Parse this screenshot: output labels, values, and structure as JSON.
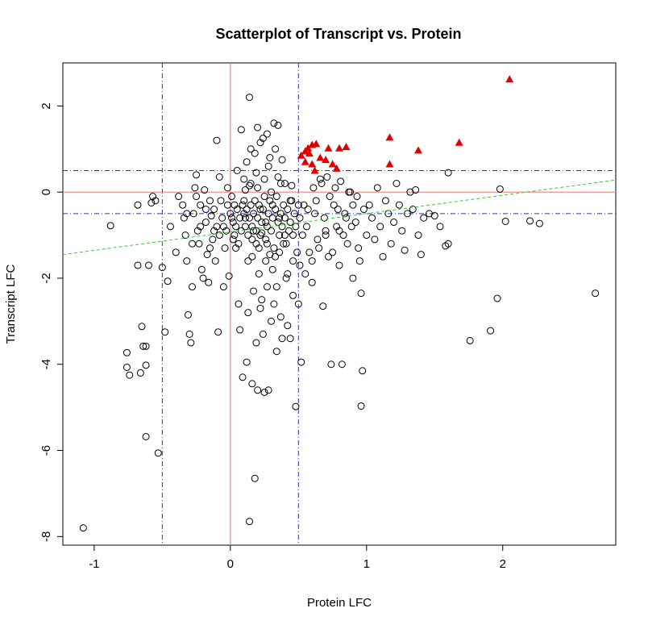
{
  "chart_data": {
    "type": "scatter",
    "title": "Scatterplot of Transcript vs. Protein",
    "xlabel": "Protein LFC",
    "ylabel": "Transcript LFC",
    "xlim": [
      -1.23,
      2.83
    ],
    "ylim": [
      -8.2,
      3.0
    ],
    "x_ticks": [
      -1,
      0,
      1,
      2
    ],
    "y_ticks": [
      2,
      0,
      -2,
      -4,
      -6,
      -8
    ],
    "grid": false,
    "colors": {
      "points": "#000000",
      "highlight": "#e00000",
      "zero_lines": "#f08080",
      "threshold_lines": "#3030c0",
      "trend_line": "#33cc33",
      "axis": "#000000"
    },
    "zero_lines": {
      "x": 0,
      "y": 0
    },
    "threshold_lines": {
      "x": [
        -0.5,
        0.5
      ],
      "y": [
        -0.5,
        0.5
      ]
    },
    "trend_line": {
      "x0": -1.23,
      "y0": -1.45,
      "x1": 2.83,
      "y1": 0.28
    },
    "highlighted": [
      [
        0.52,
        0.85
      ],
      [
        0.55,
        0.95
      ],
      [
        0.57,
        1.02
      ],
      [
        0.6,
        1.1
      ],
      [
        0.58,
        0.9
      ],
      [
        0.63,
        1.12
      ],
      [
        0.55,
        0.7
      ],
      [
        0.6,
        0.65
      ],
      [
        0.62,
        0.5
      ],
      [
        0.66,
        0.8
      ],
      [
        0.7,
        0.75
      ],
      [
        0.72,
        1.02
      ],
      [
        0.75,
        0.65
      ],
      [
        0.8,
        1.02
      ],
      [
        0.78,
        0.55
      ],
      [
        0.85,
        1.05
      ],
      [
        1.17,
        1.27
      ],
      [
        1.17,
        0.65
      ],
      [
        1.38,
        0.97
      ],
      [
        1.68,
        1.15
      ],
      [
        2.05,
        2.62
      ]
    ],
    "points": [
      [
        -1.08,
        -7.8
      ],
      [
        -0.88,
        -0.78
      ],
      [
        -0.76,
        -3.73
      ],
      [
        -0.76,
        -4.07
      ],
      [
        -0.74,
        -4.25
      ],
      [
        -0.68,
        -1.7
      ],
      [
        -0.68,
        -0.3
      ],
      [
        -0.66,
        -4.2
      ],
      [
        -0.65,
        -3.12
      ],
      [
        -0.64,
        -3.58
      ],
      [
        -0.62,
        -3.58
      ],
      [
        -0.62,
        -4.02
      ],
      [
        -0.62,
        -5.68
      ],
      [
        -0.6,
        -1.7
      ],
      [
        -0.58,
        -0.25
      ],
      [
        -0.57,
        -0.1
      ],
      [
        -0.55,
        -0.2
      ],
      [
        -0.53,
        -6.06
      ],
      [
        -0.5,
        -1.75
      ],
      [
        -0.48,
        -3.25
      ],
      [
        -0.46,
        -2.07
      ],
      [
        -0.44,
        -0.8
      ],
      [
        -0.4,
        -1.4
      ],
      [
        -0.38,
        -0.1
      ],
      [
        -0.35,
        -0.3
      ],
      [
        -0.34,
        -0.6
      ],
      [
        -0.33,
        -1.0
      ],
      [
        -0.32,
        -1.6
      ],
      [
        -0.31,
        -2.85
      ],
      [
        -0.3,
        -3.3
      ],
      [
        -0.29,
        -3.5
      ],
      [
        -0.28,
        -2.2
      ],
      [
        -0.27,
        -0.5
      ],
      [
        -0.26,
        0.1
      ],
      [
        -0.25,
        0.4
      ],
      [
        -0.24,
        -0.9
      ],
      [
        -0.23,
        -1.2
      ],
      [
        -0.22,
        -0.3
      ],
      [
        -0.21,
        -1.8
      ],
      [
        -0.2,
        -2.0
      ],
      [
        -0.19,
        0.05
      ],
      [
        -0.18,
        -0.7
      ],
      [
        -0.17,
        -1.45
      ],
      [
        -0.16,
        -2.1
      ],
      [
        -0.15,
        -0.2
      ],
      [
        -0.14,
        -0.55
      ],
      [
        -0.13,
        -1.1
      ],
      [
        -0.12,
        -0.4
      ],
      [
        -0.11,
        -1.6
      ],
      [
        -0.1,
        -0.8
      ],
      [
        -0.1,
        1.2
      ],
      [
        -0.09,
        -3.25
      ],
      [
        -0.08,
        0.35
      ],
      [
        -0.07,
        -0.2
      ],
      [
        -0.06,
        -0.6
      ],
      [
        -0.05,
        -2.2
      ],
      [
        -0.04,
        -1.3
      ],
      [
        -0.03,
        -0.9
      ],
      [
        -0.02,
        0.1
      ],
      [
        -0.01,
        -1.95
      ],
      [
        0.0,
        -0.5
      ],
      [
        0.01,
        -0.1
      ],
      [
        0.02,
        -0.7
      ],
      [
        0.03,
        -1.0
      ],
      [
        0.04,
        -1.3
      ],
      [
        0.05,
        0.5
      ],
      [
        0.06,
        -2.6
      ],
      [
        0.07,
        -3.2
      ],
      [
        0.08,
        1.45
      ],
      [
        0.09,
        -4.3
      ],
      [
        0.1,
        -0.2
      ],
      [
        0.11,
        -0.6
      ],
      [
        0.12,
        -3.95
      ],
      [
        0.13,
        -1.6
      ],
      [
        0.14,
        2.2
      ],
      [
        0.15,
        1.0
      ],
      [
        0.16,
        -4.45
      ],
      [
        0.17,
        -0.9
      ],
      [
        0.18,
        -6.65
      ],
      [
        0.19,
        0.45
      ],
      [
        0.2,
        -4.6
      ],
      [
        0.21,
        -1.9
      ],
      [
        0.22,
        -0.4
      ],
      [
        0.23,
        -2.5
      ],
      [
        0.24,
        1.25
      ],
      [
        0.25,
        -4.65
      ],
      [
        0.26,
        -0.7
      ],
      [
        0.27,
        -1.2
      ],
      [
        0.28,
        -4.6
      ],
      [
        0.29,
        0.8
      ],
      [
        0.3,
        -3.0
      ],
      [
        0.31,
        -0.3
      ],
      [
        0.32,
        1.6
      ],
      [
        0.33,
        -1.5
      ],
      [
        0.34,
        -2.2
      ],
      [
        0.35,
        1.55
      ],
      [
        0.36,
        -0.6
      ],
      [
        0.37,
        0.2
      ],
      [
        0.38,
        -3.4
      ],
      [
        0.4,
        -1.0
      ],
      [
        0.42,
        -1.9
      ],
      [
        0.44,
        -0.2
      ],
      [
        0.46,
        -2.4
      ],
      [
        0.48,
        -4.98
      ],
      [
        0.5,
        -2.6
      ],
      [
        0.52,
        -3.95
      ],
      [
        0.54,
        -0.3
      ],
      [
        0.56,
        -0.8
      ],
      [
        0.58,
        -1.4
      ],
      [
        0.6,
        -2.1
      ],
      [
        0.62,
        -0.5
      ],
      [
        0.64,
        -1.1
      ],
      [
        0.66,
        0.3
      ],
      [
        0.68,
        -2.65
      ],
      [
        0.7,
        -0.9
      ],
      [
        0.72,
        -1.5
      ],
      [
        0.74,
        -4.0
      ],
      [
        0.76,
        -0.3
      ],
      [
        0.78,
        -0.8
      ],
      [
        0.8,
        -1.7
      ],
      [
        0.82,
        -4.0
      ],
      [
        0.84,
        -0.5
      ],
      [
        0.86,
        -1.2
      ],
      [
        0.88,
        0.0
      ],
      [
        0.9,
        -2.0
      ],
      [
        0.92,
        -0.7
      ],
      [
        0.94,
        -1.3
      ],
      [
        0.96,
        -2.35
      ],
      [
        0.96,
        -4.97
      ],
      [
        0.97,
        -4.15
      ],
      [
        0.98,
        -0.4
      ],
      [
        1.0,
        -1.0
      ],
      [
        1.02,
        -0.3
      ],
      [
        1.04,
        -0.6
      ],
      [
        1.06,
        -1.1
      ],
      [
        1.08,
        0.1
      ],
      [
        1.1,
        -0.8
      ],
      [
        1.12,
        -1.5
      ],
      [
        1.14,
        -0.2
      ],
      [
        1.16,
        -0.5
      ],
      [
        1.18,
        -1.2
      ],
      [
        1.2,
        -0.7
      ],
      [
        1.22,
        0.2
      ],
      [
        1.24,
        -0.3
      ],
      [
        1.26,
        -0.9
      ],
      [
        1.28,
        -1.35
      ],
      [
        1.3,
        -0.5
      ],
      [
        1.32,
        0.0
      ],
      [
        1.34,
        -0.4
      ],
      [
        1.36,
        0.05
      ],
      [
        1.38,
        -1.0
      ],
      [
        1.4,
        -1.45
      ],
      [
        1.42,
        -0.6
      ],
      [
        1.46,
        -0.5
      ],
      [
        1.5,
        -0.55
      ],
      [
        1.54,
        -0.8
      ],
      [
        1.58,
        -1.25
      ],
      [
        1.6,
        -1.2
      ],
      [
        1.6,
        0.45
      ],
      [
        1.76,
        -3.45
      ],
      [
        1.91,
        -3.22
      ],
      [
        1.96,
        -2.47
      ],
      [
        1.98,
        0.07
      ],
      [
        2.02,
        -0.68
      ],
      [
        2.2,
        -0.67
      ],
      [
        2.27,
        -0.73
      ],
      [
        2.68,
        -2.35
      ],
      [
        0.12,
        -0.4
      ],
      [
        0.14,
        -0.6
      ],
      [
        0.15,
        -0.3
      ],
      [
        0.16,
        -0.8
      ],
      [
        0.17,
        -0.5
      ],
      [
        0.18,
        -0.2
      ],
      [
        0.19,
        -0.9
      ],
      [
        0.2,
        -0.6
      ],
      [
        0.21,
        -0.3
      ],
      [
        0.22,
        -1.0
      ],
      [
        0.23,
        -0.7
      ],
      [
        0.24,
        -0.4
      ],
      [
        0.25,
        -0.1
      ],
      [
        0.26,
        -1.1
      ],
      [
        0.27,
        -0.8
      ],
      [
        0.28,
        -0.5
      ],
      [
        0.29,
        -0.2
      ],
      [
        0.3,
        -0.9
      ],
      [
        0.31,
        -0.6
      ],
      [
        0.32,
        -1.3
      ],
      [
        0.33,
        -0.4
      ],
      [
        0.34,
        -0.1
      ],
      [
        0.35,
        -0.7
      ],
      [
        0.36,
        -1.0
      ],
      [
        0.37,
        -0.5
      ],
      [
        0.38,
        -0.8
      ],
      [
        0.39,
        -0.3
      ],
      [
        0.4,
        -0.6
      ],
      [
        0.41,
        -1.2
      ],
      [
        0.42,
        -0.4
      ],
      [
        0.43,
        -0.9
      ],
      [
        0.44,
        -0.7
      ],
      [
        0.45,
        -0.2
      ],
      [
        0.46,
        -1.0
      ],
      [
        0.47,
        -0.5
      ],
      [
        0.48,
        -0.8
      ],
      [
        0.49,
        -1.4
      ],
      [
        0.5,
        -0.3
      ],
      [
        0.51,
        -0.6
      ],
      [
        0.53,
        -1.0
      ],
      [
        0.1,
        -0.5
      ],
      [
        0.11,
        -0.8
      ],
      [
        0.13,
        -1.0
      ],
      [
        0.09,
        -0.3
      ],
      [
        0.08,
        -0.9
      ],
      [
        0.07,
        -0.6
      ],
      [
        0.06,
        -1.2
      ],
      [
        0.05,
        -0.4
      ],
      [
        0.04,
        -0.8
      ],
      [
        0.03,
        -0.3
      ],
      [
        0.02,
        -1.1
      ],
      [
        0.01,
        -0.6
      ],
      [
        0.15,
        0.2
      ],
      [
        0.2,
        0.1
      ],
      [
        0.25,
        0.3
      ],
      [
        0.3,
        0.0
      ],
      [
        0.35,
        0.35
      ],
      [
        0.4,
        0.2
      ],
      [
        0.45,
        0.15
      ],
      [
        0.1,
        0.3
      ],
      [
        0.12,
        0.7
      ],
      [
        0.18,
        0.9
      ],
      [
        0.22,
        1.15
      ],
      [
        0.28,
        0.6
      ],
      [
        0.33,
        1.0
      ],
      [
        0.38,
        0.75
      ],
      [
        0.27,
        1.35
      ],
      [
        0.2,
        1.5
      ],
      [
        0.16,
        -1.5
      ],
      [
        0.21,
        -1.3
      ],
      [
        0.26,
        -1.6
      ],
      [
        0.31,
        -1.8
      ],
      [
        0.36,
        -1.4
      ],
      [
        0.41,
        -2.0
      ],
      [
        0.46,
        -1.6
      ],
      [
        0.17,
        -2.3
      ],
      [
        0.22,
        -2.7
      ],
      [
        0.27,
        -2.2
      ],
      [
        0.32,
        -2.6
      ],
      [
        0.37,
        -2.9
      ],
      [
        0.42,
        -3.1
      ],
      [
        0.13,
        -2.8
      ],
      [
        0.19,
        -3.5
      ],
      [
        0.24,
        -3.3
      ],
      [
        0.34,
        -3.7
      ],
      [
        0.44,
        -3.4
      ],
      [
        0.51,
        -1.7
      ],
      [
        0.55,
        -1.9
      ],
      [
        0.6,
        -1.6
      ],
      [
        0.65,
        -1.3
      ],
      [
        0.7,
        -1.0
      ],
      [
        0.75,
        -1.4
      ],
      [
        0.8,
        -0.9
      ],
      [
        0.85,
        -0.6
      ],
      [
        0.9,
        -0.3
      ],
      [
        0.95,
        -1.6
      ],
      [
        0.57,
        -0.4
      ],
      [
        0.63,
        -0.2
      ],
      [
        0.69,
        -0.6
      ],
      [
        0.73,
        -0.1
      ],
      [
        0.79,
        -0.4
      ],
      [
        0.83,
        -1.0
      ],
      [
        0.89,
        -0.8
      ],
      [
        0.93,
        -0.1
      ],
      [
        0.61,
        0.1
      ],
      [
        0.67,
        0.2
      ],
      [
        0.71,
        0.35
      ],
      [
        0.77,
        0.1
      ],
      [
        0.81,
        0.25
      ],
      [
        0.87,
        0.0
      ],
      [
        -0.02,
        -0.3
      ],
      [
        -0.05,
        -0.8
      ],
      [
        -0.08,
        -1.0
      ],
      [
        -0.12,
        -0.9
      ],
      [
        -0.15,
        -1.3
      ],
      [
        -0.18,
        -0.4
      ],
      [
        -0.22,
        -0.8
      ],
      [
        -0.25,
        -0.1
      ],
      [
        -0.28,
        -1.2
      ],
      [
        -0.32,
        -0.5
      ],
      [
        0.14,
        -7.65
      ],
      [
        0.16,
        -1.1
      ],
      [
        0.19,
        -1.2
      ],
      [
        0.23,
        -0.95
      ],
      [
        0.11,
        0.05
      ],
      [
        0.14,
        0.15
      ],
      [
        0.29,
        -1.45
      ],
      [
        0.39,
        -1.2
      ]
    ]
  }
}
